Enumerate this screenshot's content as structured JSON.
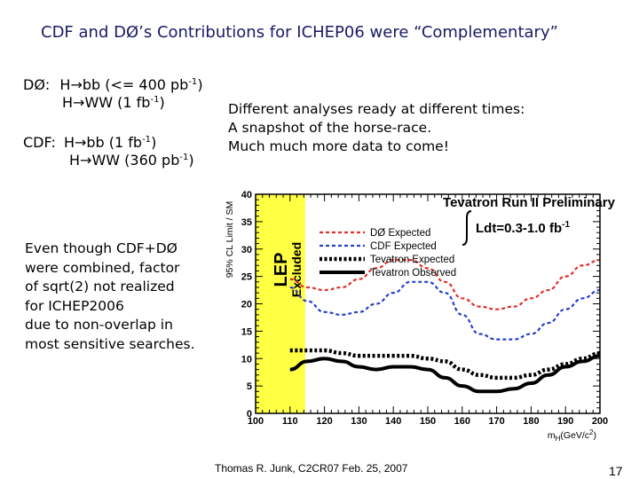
{
  "slide": {
    "title": "CDF and DØ’s Contributions for ICHEP06 were “Complementary”",
    "d0": {
      "label": "DØ:",
      "line1_prefix": "H",
      "line1_text": "bb (<= 400 pb",
      "line1_sup": "-1",
      "line1_suffix": ")",
      "line2_prefix": "H",
      "line2_text": "WW (1 fb",
      "line2_sup": "-1",
      "line2_suffix": ")"
    },
    "cdf": {
      "label": "CDF:",
      "line1_prefix": "H",
      "line1_text": "bb (1 fb",
      "line1_sup": "-1",
      "line1_suffix": ")",
      "line2_prefix": "H",
      "line2_text": "WW (360 pb",
      "line2_sup": "-1",
      "line2_suffix": ")"
    },
    "middle_text": [
      "Different analyses ready at different times:",
      "A snapshot of the horse-race.",
      "Much much more data to come!"
    ],
    "note": [
      "Even though CDF+DØ",
      "were combined, factor",
      "of sqrt(2) not realized",
      "for ICHEP2006",
      "due to non-overlap in",
      "most sensitive searches."
    ],
    "footer": "Thomas R. Junk, C2CR07 Feb. 25, 2007",
    "page_number": "17",
    "colors": {
      "title": "#1a1a66",
      "lep_band": "#ffff44",
      "d0": "#e03030",
      "cdf": "#2840c8",
      "observed": "#000000"
    }
  },
  "chart_data": {
    "type": "line",
    "title": "Tevatron Run II Preliminary",
    "luminosity": "Ldt=0.3-1.0 fb",
    "luminosity_sup": "-1",
    "ylabel": "95% CL Limit / SM",
    "xlabel": "m",
    "xlabel_sub": "H",
    "xlabel_unit": "(GeV/c",
    "xlabel_unit_sup": "2",
    "xlabel_unit_end": ")",
    "xlim": [
      100,
      200
    ],
    "ylim": [
      0,
      40
    ],
    "xticks": [
      100,
      110,
      120,
      130,
      140,
      150,
      160,
      170,
      180,
      190,
      200
    ],
    "yticks": [
      0,
      5,
      10,
      15,
      20,
      25,
      30,
      35,
      40
    ],
    "lep_excluded": {
      "range": [
        100,
        114.4
      ],
      "label_line1": "LEP",
      "label_line2": "Excluded"
    },
    "series": [
      {
        "name": "DØ Expected",
        "style": "dashed-thin",
        "color": "#e03030",
        "x": [
          110,
          115,
          120,
          125,
          130,
          135,
          140,
          145,
          150,
          155,
          160,
          165,
          170,
          175,
          180,
          185,
          190,
          195,
          200
        ],
        "y": [
          24.5,
          23,
          22.5,
          23,
          24.5,
          26.5,
          28,
          28,
          26.5,
          24,
          21,
          19.5,
          19,
          19.5,
          21,
          22.5,
          25,
          27,
          28
        ]
      },
      {
        "name": "CDF Expected",
        "style": "dashed-thin",
        "color": "#2840c8",
        "x": [
          110,
          115,
          120,
          125,
          130,
          135,
          140,
          145,
          150,
          155,
          160,
          165,
          170,
          175,
          180,
          185,
          190,
          195,
          200
        ],
        "y": [
          23,
          20.5,
          18.5,
          18,
          18.5,
          20,
          22,
          24,
          24,
          22,
          18,
          14.5,
          13.5,
          13.5,
          14.5,
          16.5,
          19,
          21,
          22.5
        ]
      },
      {
        "name": "Tevatron Expected",
        "style": "dotted-thick",
        "color": "#000000",
        "x": [
          110,
          115,
          120,
          125,
          130,
          135,
          140,
          145,
          150,
          155,
          160,
          165,
          170,
          175,
          180,
          185,
          190,
          195,
          200
        ],
        "y": [
          11.5,
          11.5,
          11.5,
          11,
          10.5,
          10.5,
          10.5,
          10.5,
          10,
          9.5,
          8,
          7,
          6.5,
          6.5,
          7,
          8,
          9,
          10,
          11
        ]
      },
      {
        "name": "Tevatron Observed",
        "style": "solid-thick",
        "color": "#000000",
        "x": [
          110,
          115,
          120,
          125,
          130,
          135,
          140,
          145,
          150,
          155,
          160,
          165,
          170,
          175,
          180,
          185,
          190,
          195,
          200
        ],
        "y": [
          8,
          9.5,
          10,
          9.5,
          8.5,
          8,
          8.5,
          8.5,
          8,
          6.5,
          5,
          4,
          4,
          4.5,
          5.5,
          7,
          8.5,
          9.5,
          10.5
        ]
      }
    ],
    "legend_placement": "top-left"
  }
}
